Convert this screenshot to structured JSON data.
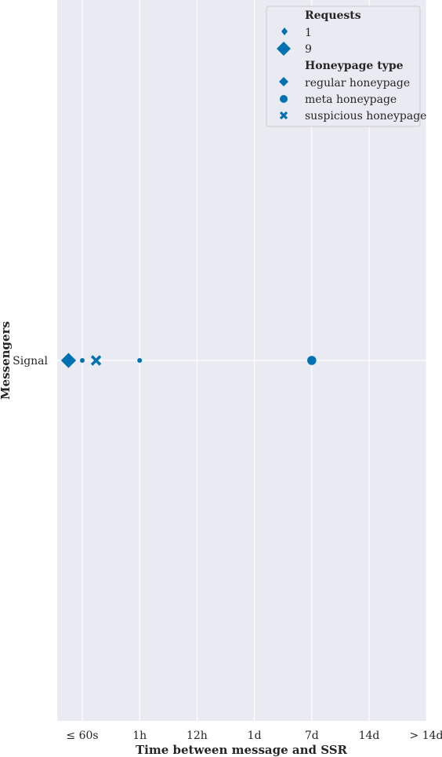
{
  "chart_data": {
    "type": "scatter",
    "title": "",
    "xlabel": "Time between message and SSR",
    "ylabel": "Messengers",
    "x_ticks": [
      "≤ 60s",
      "1h",
      "12h",
      "1d",
      "7d",
      "14d",
      "> 14d"
    ],
    "y_categories": [
      "Signal"
    ],
    "grid": true,
    "legend_position": "top-right",
    "color": "#0072b2",
    "background": "#eaeaf2",
    "legend": {
      "size_title": "Requests",
      "size_entries": [
        {
          "label": "1",
          "requests": 1
        },
        {
          "label": "9",
          "requests": 9
        }
      ],
      "type_title": "Honeypage type",
      "type_entries": [
        {
          "label": "regular honeypage",
          "marker": "diamond"
        },
        {
          "label": "meta honeypage",
          "marker": "circle"
        },
        {
          "label": "suspicious honeypage",
          "marker": "x"
        }
      ]
    },
    "points": [
      {
        "messenger": "Signal",
        "x": -0.24,
        "type": "regular",
        "marker": "diamond",
        "requests": 9
      },
      {
        "messenger": "Signal",
        "x": 0.0,
        "type": "meta",
        "marker": "circle",
        "requests": 1
      },
      {
        "messenger": "Signal",
        "x": 0.24,
        "type": "suspicious",
        "marker": "x",
        "requests": 6
      },
      {
        "messenger": "Signal",
        "x": 1.0,
        "type": "meta",
        "marker": "circle",
        "requests": 1
      },
      {
        "messenger": "Signal",
        "x": 4.0,
        "type": "meta",
        "marker": "circle",
        "requests": 6
      }
    ]
  }
}
